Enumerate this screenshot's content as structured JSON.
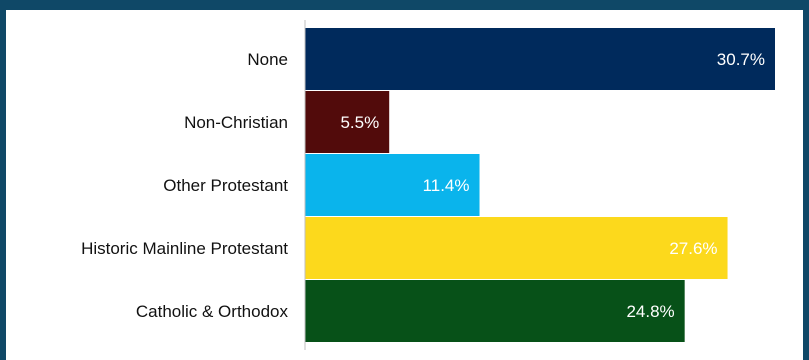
{
  "chart_data": {
    "type": "bar",
    "orientation": "horizontal",
    "categories": [
      "None",
      "Non-Christian",
      "Other Protestant",
      "Historic Mainline Protestant",
      "Catholic & Orthodox"
    ],
    "values": [
      30.7,
      5.5,
      11.4,
      27.6,
      24.8
    ],
    "value_labels": [
      "30.7%",
      "5.5%",
      "11.4%",
      "27.6%",
      "24.8%"
    ],
    "colors": [
      "#002a5c",
      "#520b0b",
      "#0ab4ec",
      "#fcd91c",
      "#075118"
    ],
    "xlim": [
      0,
      30.7
    ],
    "grid": false,
    "legend": "none"
  }
}
